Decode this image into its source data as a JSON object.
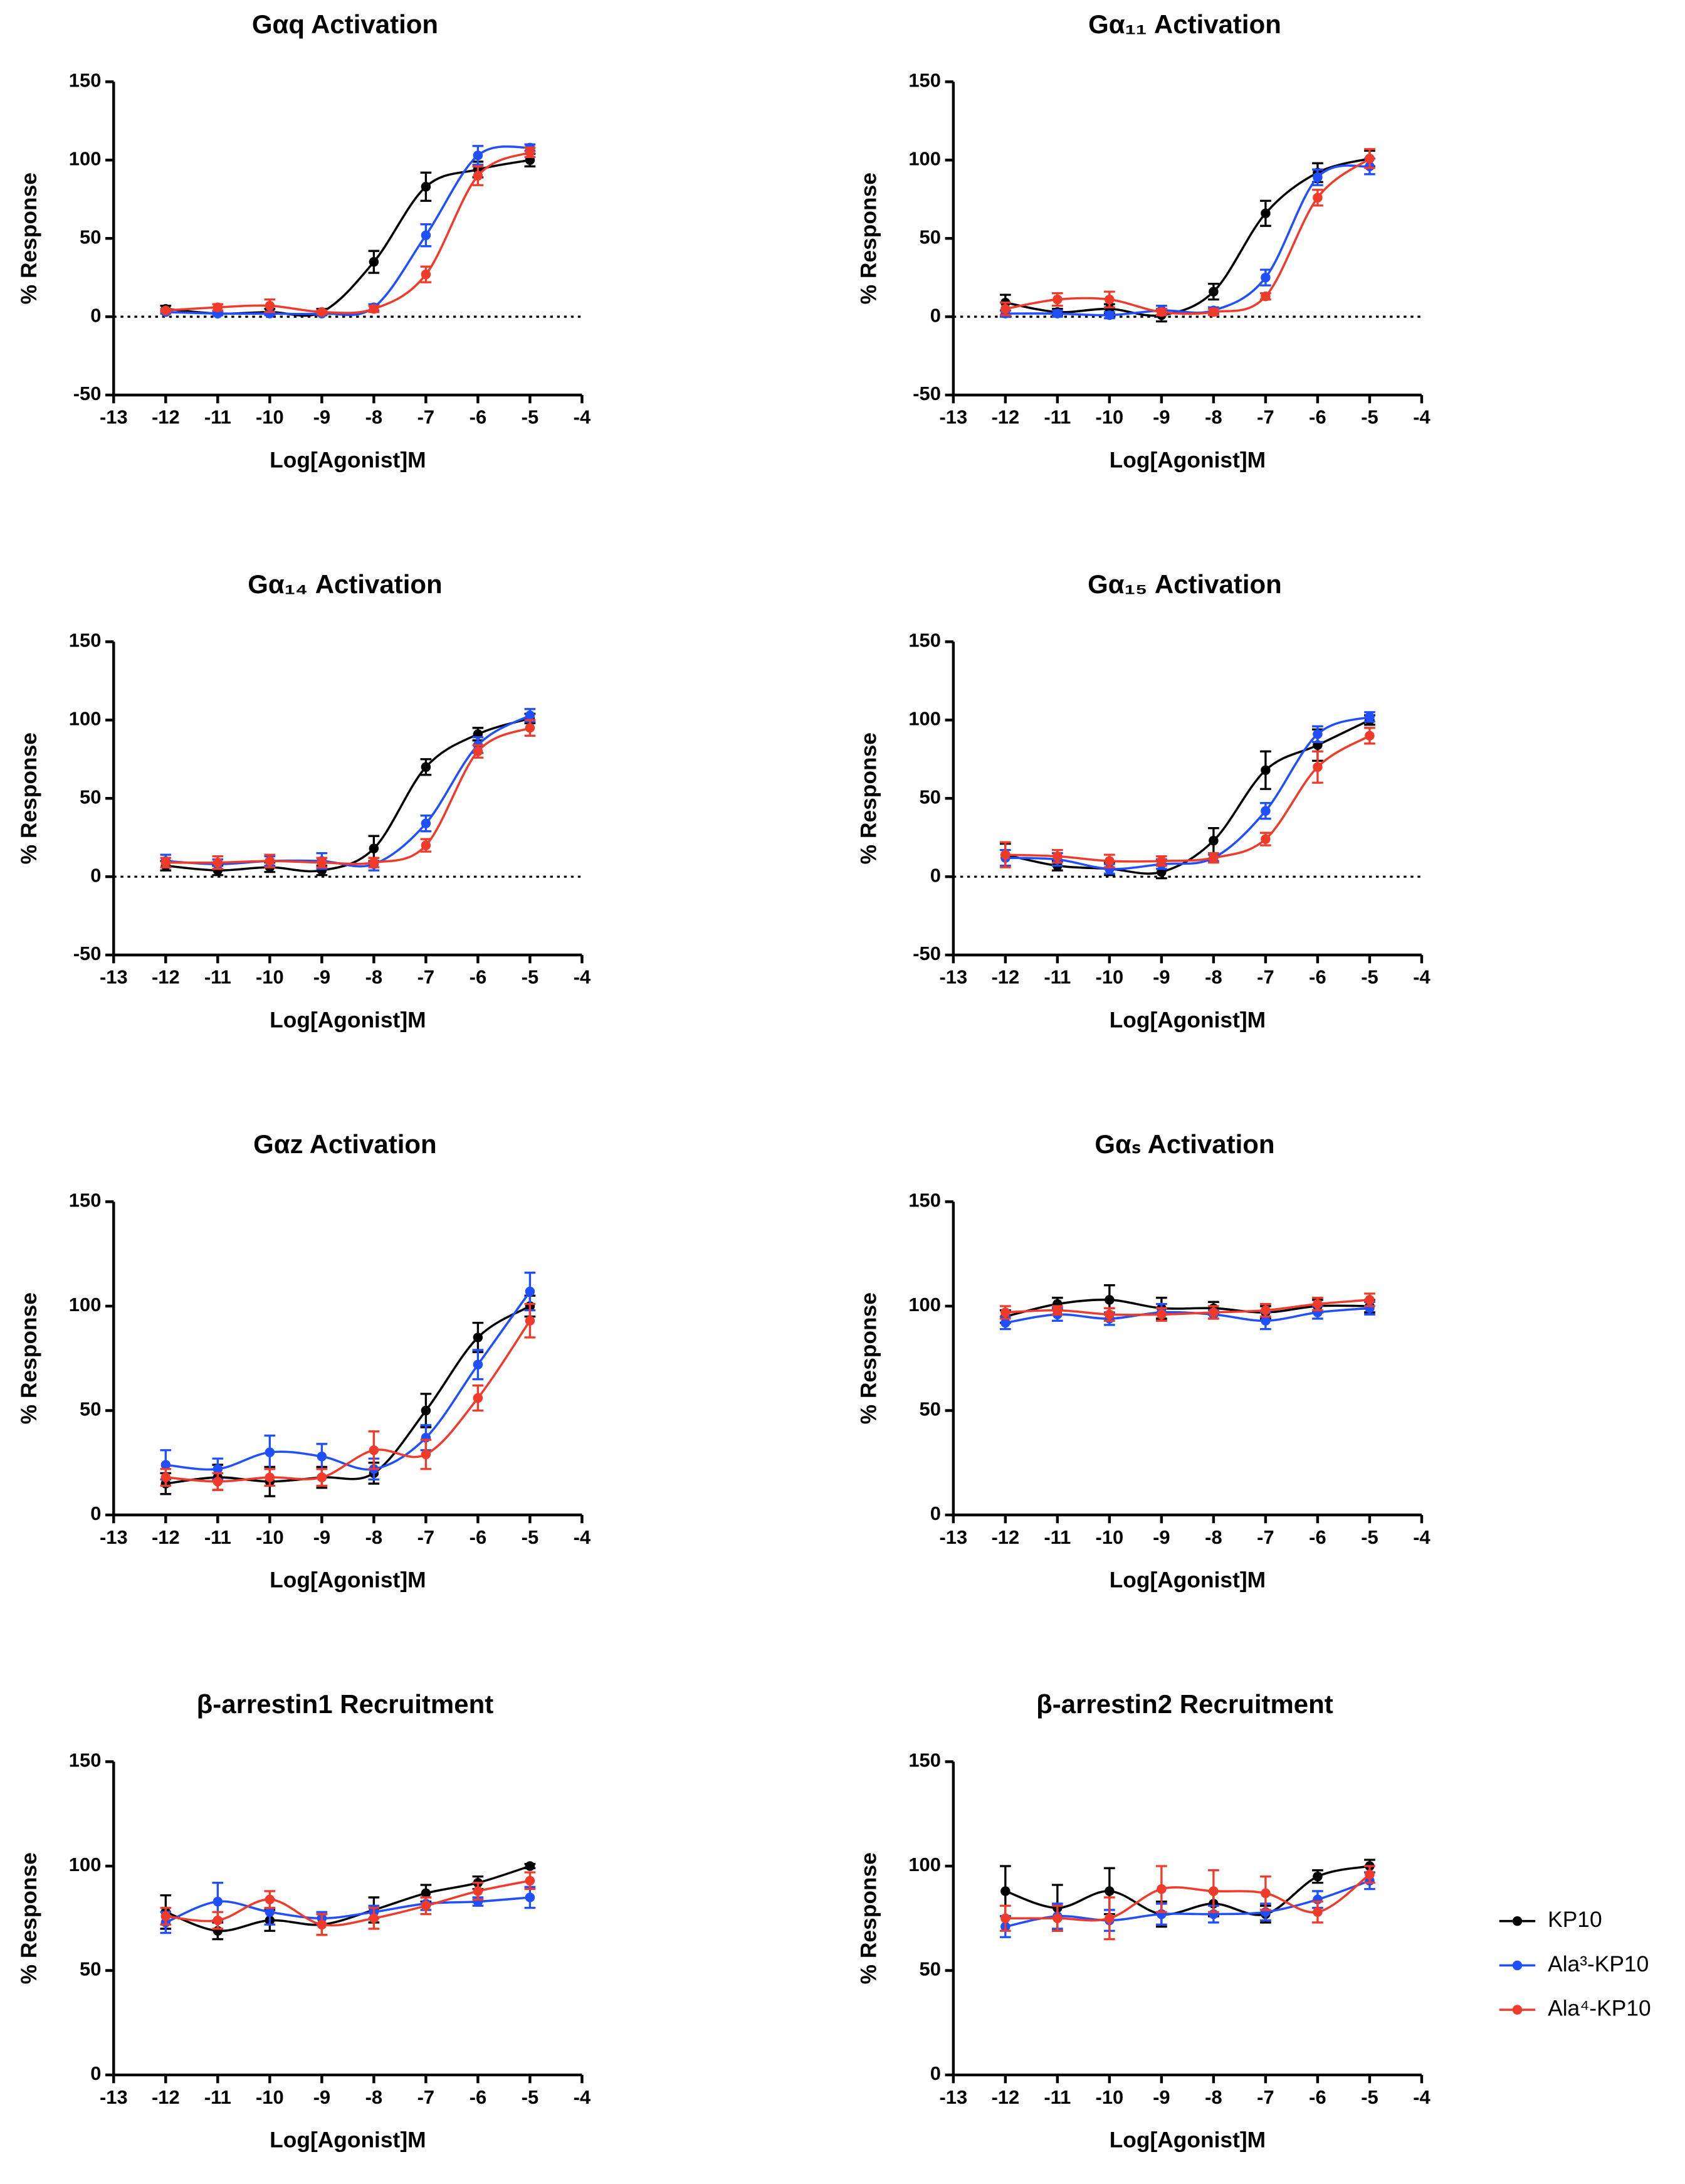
{
  "chart_data": [
    {
      "type": "line",
      "title": "Gαq Activation",
      "x_label": "Log[Agonist]M",
      "y_label": "% Response",
      "x": [
        -12,
        -11,
        -10,
        -9,
        -8,
        -7,
        -6,
        -5
      ],
      "xlim": [
        -13,
        -4
      ],
      "xticks": [
        -13,
        -12,
        -11,
        -10,
        -9,
        -8,
        -7,
        -6,
        -5,
        -4
      ],
      "ylim": [
        -50,
        150
      ],
      "yticks": [
        -50,
        0,
        50,
        100,
        150
      ],
      "zero_line": true,
      "series": [
        {
          "name": "KP10",
          "color": "#000000",
          "values": [
            5,
            2,
            3,
            3,
            35,
            83,
            94,
            100
          ],
          "errors": [
            2,
            1,
            2,
            2,
            7,
            9,
            5,
            4
          ]
        },
        {
          "name": "Ala³-KP10",
          "color": "#1f4fff",
          "values": [
            3,
            2,
            2,
            2,
            6,
            52,
            103,
            108
          ],
          "errors": [
            1,
            1,
            1,
            1,
            2,
            7,
            6,
            2
          ]
        },
        {
          "name": "Ala⁴-KP10",
          "color": "#f03a2a",
          "values": [
            4,
            6,
            7,
            3,
            5,
            27,
            90,
            105
          ],
          "errors": [
            1,
            2,
            4,
            1,
            2,
            5,
            6,
            3
          ]
        }
      ]
    },
    {
      "type": "line",
      "title": "Gα₁₁ Activation",
      "x_label": "Log[Agonist]M",
      "y_label": "% Response",
      "x": [
        -12,
        -11,
        -10,
        -9,
        -8,
        -7,
        -6,
        -5
      ],
      "xlim": [
        -13,
        -4
      ],
      "xticks": [
        -13,
        -12,
        -11,
        -10,
        -9,
        -8,
        -7,
        -6,
        -5,
        -4
      ],
      "ylim": [
        -50,
        150
      ],
      "yticks": [
        -50,
        0,
        50,
        100,
        150
      ],
      "zero_line": true,
      "series": [
        {
          "name": "KP10",
          "color": "#000000",
          "values": [
            9,
            3,
            5,
            1,
            16,
            66,
            92,
            101
          ],
          "errors": [
            5,
            2,
            3,
            4,
            5,
            8,
            6,
            5
          ]
        },
        {
          "name": "Ala³-KP10",
          "color": "#1f4fff",
          "values": [
            2,
            2,
            1,
            4,
            4,
            25,
            89,
            96
          ],
          "errors": [
            2,
            2,
            2,
            3,
            2,
            5,
            5,
            5
          ]
        },
        {
          "name": "Ala⁴-KP10",
          "color": "#f03a2a",
          "values": [
            5,
            11,
            11,
            3,
            3,
            13,
            76,
            101
          ],
          "errors": [
            4,
            4,
            5,
            2,
            2,
            2,
            5,
            6
          ]
        }
      ]
    },
    {
      "type": "line",
      "title": "Gα₁₄ Activation",
      "x_label": "Log[Agonist]M",
      "y_label": "% Response",
      "x": [
        -12,
        -11,
        -10,
        -9,
        -8,
        -7,
        -6,
        -5
      ],
      "xlim": [
        -13,
        -4
      ],
      "xticks": [
        -13,
        -12,
        -11,
        -10,
        -9,
        -8,
        -7,
        -6,
        -5,
        -4
      ],
      "ylim": [
        -50,
        150
      ],
      "yticks": [
        -50,
        0,
        50,
        100,
        150
      ],
      "zero_line": true,
      "series": [
        {
          "name": "KP10",
          "color": "#000000",
          "values": [
            7,
            4,
            6,
            4,
            18,
            70,
            91,
            101
          ],
          "errors": [
            3,
            3,
            3,
            3,
            8,
            5,
            4,
            3
          ]
        },
        {
          "name": "Ala³-KP10",
          "color": "#1f4fff",
          "values": [
            10,
            8,
            10,
            10,
            8,
            34,
            84,
            103
          ],
          "errors": [
            4,
            3,
            3,
            5,
            4,
            5,
            5,
            4
          ]
        },
        {
          "name": "Ala⁴-KP10",
          "color": "#f03a2a",
          "values": [
            9,
            9,
            10,
            9,
            9,
            20,
            80,
            95
          ],
          "errors": [
            3,
            4,
            4,
            3,
            3,
            4,
            4,
            5
          ]
        }
      ]
    },
    {
      "type": "line",
      "title": "Gα₁₅ Activation",
      "x_label": "Log[Agonist]M",
      "y_label": "% Response",
      "x": [
        -12,
        -11,
        -10,
        -9,
        -8,
        -7,
        -6,
        -5
      ],
      "xlim": [
        -13,
        -4
      ],
      "xticks": [
        -13,
        -12,
        -11,
        -10,
        -9,
        -8,
        -7,
        -6,
        -5,
        -4
      ],
      "ylim": [
        -50,
        150
      ],
      "yticks": [
        -50,
        0,
        50,
        100,
        150
      ],
      "zero_line": true,
      "series": [
        {
          "name": "KP10",
          "color": "#000000",
          "values": [
            14,
            7,
            5,
            3,
            23,
            68,
            84,
            100
          ],
          "errors": [
            7,
            3,
            4,
            4,
            8,
            12,
            10,
            3
          ]
        },
        {
          "name": "Ala³-KP10",
          "color": "#1f4fff",
          "values": [
            12,
            11,
            5,
            8,
            12,
            42,
            91,
            102
          ],
          "errors": [
            5,
            4,
            3,
            3,
            2,
            5,
            5,
            3
          ]
        },
        {
          "name": "Ala⁴-KP10",
          "color": "#f03a2a",
          "values": [
            14,
            13,
            10,
            10,
            12,
            24,
            70,
            90
          ],
          "errors": [
            8,
            4,
            4,
            3,
            3,
            4,
            10,
            5
          ]
        }
      ]
    },
    {
      "type": "line",
      "title": "Gαz Activation",
      "x_label": "Log[Agonist]M",
      "y_label": "% Response",
      "x": [
        -12,
        -11,
        -10,
        -9,
        -8,
        -7,
        -6,
        -5
      ],
      "xlim": [
        -13,
        -4
      ],
      "xticks": [
        -13,
        -12,
        -11,
        -10,
        -9,
        -8,
        -7,
        -6,
        -5,
        -4
      ],
      "ylim": [
        0,
        150
      ],
      "yticks": [
        0,
        50,
        100,
        150
      ],
      "zero_line": false,
      "series": [
        {
          "name": "KP10",
          "color": "#000000",
          "values": [
            15,
            18,
            16,
            18,
            20,
            50,
            85,
            100
          ],
          "errors": [
            5,
            6,
            7,
            5,
            5,
            8,
            7,
            5
          ]
        },
        {
          "name": "Ala³-KP10",
          "color": "#1f4fff",
          "values": [
            24,
            22,
            30,
            28,
            22,
            37,
            72,
            107
          ],
          "errors": [
            7,
            5,
            8,
            6,
            5,
            6,
            7,
            9
          ]
        },
        {
          "name": "Ala⁴-KP10",
          "color": "#f03a2a",
          "values": [
            18,
            16,
            18,
            18,
            31,
            29,
            56,
            93
          ],
          "errors": [
            4,
            4,
            4,
            4,
            9,
            7,
            6,
            8
          ]
        }
      ]
    },
    {
      "type": "line",
      "title": "Gαₛ Activation",
      "x_label": "Log[Agonist]M",
      "y_label": "% Response",
      "x": [
        -12,
        -11,
        -10,
        -9,
        -8,
        -7,
        -6,
        -5
      ],
      "xlim": [
        -13,
        -4
      ],
      "xticks": [
        -13,
        -12,
        -11,
        -10,
        -9,
        -8,
        -7,
        -6,
        -5,
        -4
      ],
      "ylim": [
        0,
        150
      ],
      "yticks": [
        0,
        50,
        100,
        150
      ],
      "zero_line": false,
      "series": [
        {
          "name": "KP10",
          "color": "#000000",
          "values": [
            95,
            101,
            103,
            99,
            99,
            97,
            100,
            100
          ],
          "errors": [
            3,
            3,
            7,
            5,
            3,
            3,
            3,
            3
          ]
        },
        {
          "name": "Ala³-KP10",
          "color": "#1f4fff",
          "values": [
            92,
            96,
            94,
            97,
            96,
            93,
            97,
            99
          ],
          "errors": [
            3,
            3,
            3,
            4,
            2,
            4,
            3,
            3
          ]
        },
        {
          "name": "Ala⁴-KP10",
          "color": "#f03a2a",
          "values": [
            97,
            98,
            96,
            96,
            97,
            98,
            101,
            103
          ],
          "errors": [
            3,
            2,
            3,
            3,
            3,
            3,
            3,
            3
          ]
        }
      ]
    },
    {
      "type": "line",
      "title": "β-arrestin1 Recruitment",
      "x_label": "Log[Agonist]M",
      "y_label": "% Response",
      "x": [
        -12,
        -11,
        -10,
        -9,
        -8,
        -7,
        -6,
        -5
      ],
      "xlim": [
        -13,
        -4
      ],
      "xticks": [
        -13,
        -12,
        -11,
        -10,
        -9,
        -8,
        -7,
        -6,
        -5,
        -4
      ],
      "ylim": [
        0,
        150
      ],
      "yticks": [
        0,
        50,
        100,
        150
      ],
      "zero_line": false,
      "series": [
        {
          "name": "KP10",
          "color": "#000000",
          "values": [
            78,
            69,
            74,
            72,
            79,
            87,
            92,
            100
          ],
          "errors": [
            8,
            4,
            5,
            5,
            6,
            4,
            3,
            1
          ]
        },
        {
          "name": "Ala³-KP10",
          "color": "#1f4fff",
          "values": [
            73,
            83,
            78,
            75,
            78,
            82,
            83,
            85
          ],
          "errors": [
            5,
            9,
            6,
            3,
            3,
            3,
            2,
            5
          ]
        },
        {
          "name": "Ala⁴-KP10",
          "color": "#f03a2a",
          "values": [
            76,
            74,
            84,
            72,
            75,
            81,
            88,
            93
          ],
          "errors": [
            4,
            4,
            4,
            5,
            5,
            4,
            4,
            4
          ]
        }
      ]
    },
    {
      "type": "line",
      "title": "β-arrestin2 Recruitment",
      "x_label": "Log[Agonist]M",
      "y_label": "% Response",
      "x": [
        -12,
        -11,
        -10,
        -9,
        -8,
        -7,
        -6,
        -5
      ],
      "xlim": [
        -13,
        -4
      ],
      "xticks": [
        -13,
        -12,
        -11,
        -10,
        -9,
        -8,
        -7,
        -6,
        -5,
        -4
      ],
      "ylim": [
        0,
        150
      ],
      "yticks": [
        0,
        50,
        100,
        150
      ],
      "zero_line": false,
      "legend": "right",
      "series": [
        {
          "name": "KP10",
          "color": "#000000",
          "values": [
            88,
            80,
            88,
            77,
            82,
            77,
            95,
            100
          ],
          "errors": [
            12,
            11,
            11,
            6,
            6,
            4,
            3,
            3
          ]
        },
        {
          "name": "Ala³-KP10",
          "color": "#1f4fff",
          "values": [
            71,
            76,
            74,
            77,
            77,
            78,
            84,
            93
          ],
          "errors": [
            5,
            6,
            5,
            5,
            4,
            4,
            4,
            4
          ]
        },
        {
          "name": "Ala⁴-KP10",
          "color": "#f03a2a",
          "values": [
            75,
            75,
            75,
            89,
            88,
            87,
            78,
            96
          ],
          "errors": [
            6,
            6,
            10,
            11,
            10,
            8,
            5,
            4
          ]
        }
      ]
    }
  ]
}
